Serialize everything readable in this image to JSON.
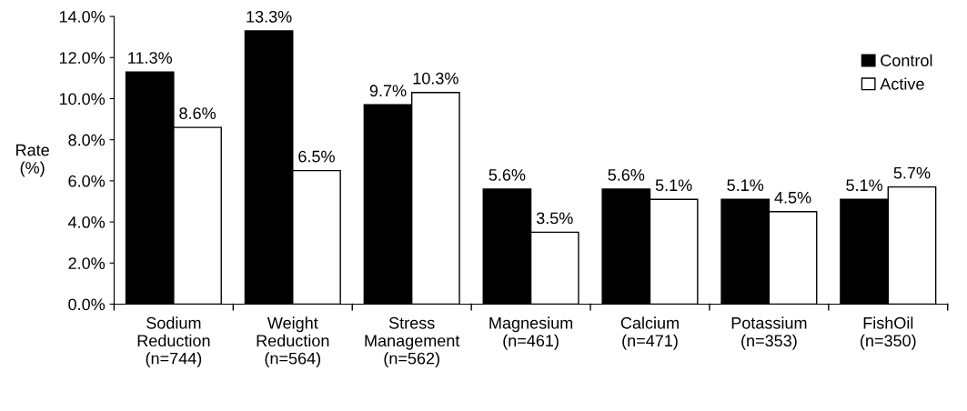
{
  "chart_data": {
    "type": "bar",
    "ylabel": "Rate\n(%)",
    "categories": [
      "Sodium\nReduction\n(n=744)",
      "Weight\nReduction\n(n=564)",
      "Stress\nManagement\n(n=562)",
      "Magnesium\n(n=461)",
      "Calcium\n(n=471)",
      "Potassium\n(n=353)",
      "FishOil\n(n=350)"
    ],
    "series": [
      {
        "name": "Control",
        "color": "#000000",
        "values": [
          11.3,
          13.3,
          9.7,
          5.6,
          5.6,
          5.1,
          5.1
        ],
        "value_labels": [
          "11.3%",
          "13.3%",
          "9.7%",
          "5.6%",
          "5.6%",
          "5.1%",
          "5.1%"
        ]
      },
      {
        "name": "Active",
        "color": "#ffffff",
        "values": [
          8.6,
          6.5,
          10.3,
          3.5,
          5.1,
          4.5,
          5.7
        ],
        "value_labels": [
          "8.6%",
          "6.5%",
          "10.3%",
          "3.5%",
          "5.1%",
          "4.5%",
          "5.7%"
        ]
      }
    ],
    "ylim": [
      0,
      14
    ],
    "yticks": [
      {
        "value": 0,
        "label": "0.0%"
      },
      {
        "value": 2,
        "label": "2.0%"
      },
      {
        "value": 4,
        "label": "4.0%"
      },
      {
        "value": 6,
        "label": "6.0%"
      },
      {
        "value": 8,
        "label": "8.0%"
      },
      {
        "value": 10,
        "label": "10.0%"
      },
      {
        "value": 12,
        "label": "12.0%"
      },
      {
        "value": 14,
        "label": "14.0%"
      }
    ],
    "grid": false,
    "legend": "top right"
  }
}
